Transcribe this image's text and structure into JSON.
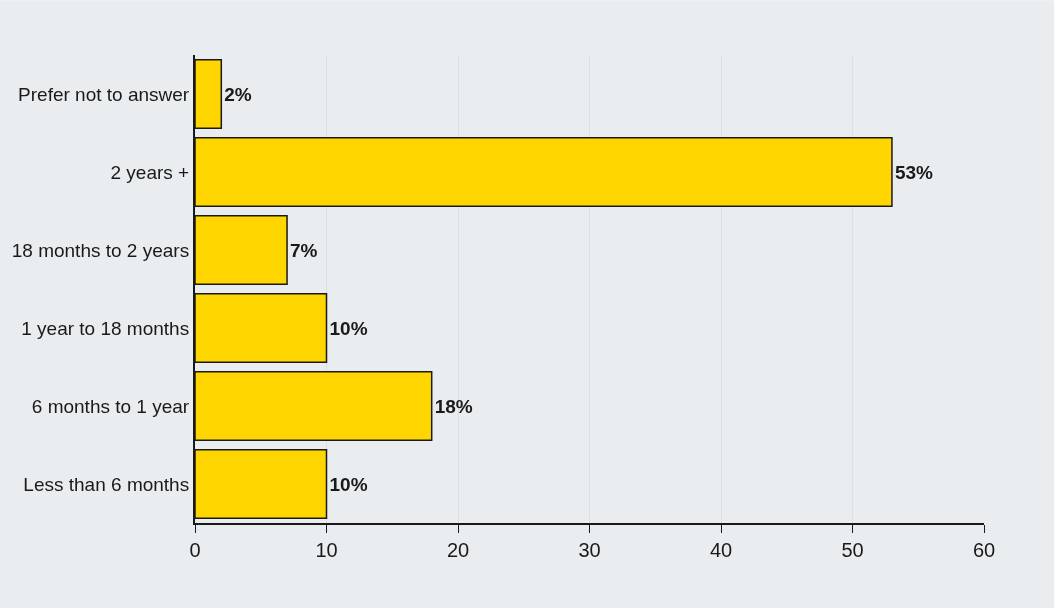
{
  "chart_data": {
    "type": "bar",
    "orientation": "horizontal",
    "categories": [
      "Prefer not to answer",
      "2 years +",
      "18 months to 2 years",
      "1 year to 18 months",
      "6 months to 1 year",
      "Less than 6 months"
    ],
    "values": [
      2,
      53,
      7,
      10,
      18,
      10
    ],
    "value_labels": [
      "2%",
      "53%",
      "7%",
      "10%",
      "18%",
      "10%"
    ],
    "color": "#ffd600",
    "xlim": [
      0,
      60
    ],
    "xticks": [
      0,
      10,
      20,
      30,
      40,
      50,
      60
    ],
    "grid": "x"
  }
}
